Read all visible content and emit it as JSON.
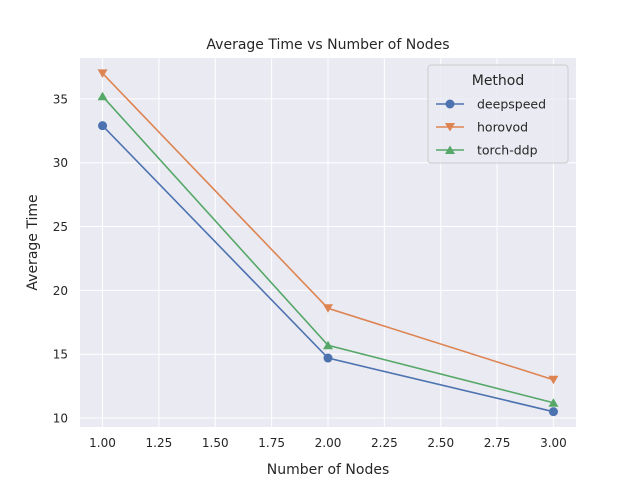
{
  "chart_data": {
    "type": "line",
    "title": "Average Time vs Number of Nodes",
    "xlabel": "Number of Nodes",
    "ylabel": "Average Time",
    "xlim": [
      0.9,
      3.1
    ],
    "ylim": [
      9.3,
      38.2
    ],
    "xticks": [
      "1.00",
      "1.25",
      "1.50",
      "1.75",
      "2.00",
      "2.25",
      "2.50",
      "2.75",
      "3.00"
    ],
    "yticks": [
      "10",
      "15",
      "20",
      "25",
      "30",
      "35"
    ],
    "grid": true,
    "legend": {
      "title": "Method",
      "placement": "top-right"
    },
    "x": [
      1,
      2,
      3
    ],
    "series": [
      {
        "name": "deepspeed",
        "values": [
          32.9,
          14.7,
          10.5
        ],
        "color": "#4c72b0",
        "marker": "circle"
      },
      {
        "name": "horovod",
        "values": [
          37.0,
          18.6,
          13.0
        ],
        "color": "#dd8452",
        "marker": "triangle-down"
      },
      {
        "name": "torch-ddp",
        "values": [
          35.2,
          15.7,
          11.2
        ],
        "color": "#55a868",
        "marker": "triangle-up"
      }
    ],
    "background": "#eaeaf2"
  }
}
